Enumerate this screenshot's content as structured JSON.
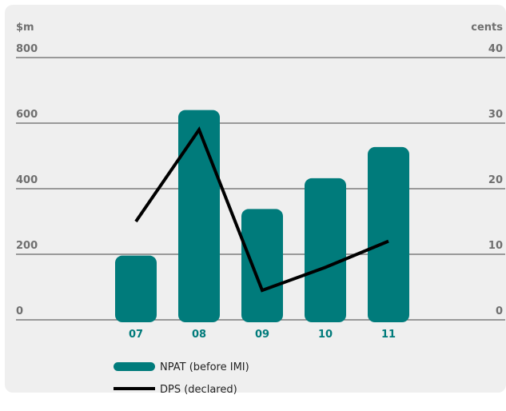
{
  "chart_data": {
    "type": "bar",
    "categories": [
      "07",
      "08",
      "09",
      "10",
      "11"
    ],
    "y_left": {
      "unit_label": "$m",
      "ticks": [
        "0",
        "200",
        "400",
        "600",
        "800"
      ],
      "ylim": [
        0,
        800
      ]
    },
    "y_right": {
      "unit_label": "cents",
      "ticks": [
        "0",
        "10",
        "20",
        "30",
        "40"
      ],
      "ylim": [
        0,
        40
      ]
    },
    "grid": true,
    "series": [
      {
        "name": "NPAT (before IMI)",
        "type": "bar",
        "axis": "left",
        "color": "#007b7b",
        "values": [
          196,
          640,
          338,
          432,
          527
        ]
      },
      {
        "name": "DPS (declared)",
        "type": "line",
        "axis": "right",
        "color": "#000000",
        "values": [
          15,
          29,
          4.5,
          8,
          12
        ]
      }
    ],
    "legend": {
      "position": "bottom-left"
    },
    "colors": {
      "panel": "#efefef",
      "grid": "#7d7d7d",
      "axis_text": "#6f6f6f",
      "category_text": "#007b7b"
    }
  }
}
